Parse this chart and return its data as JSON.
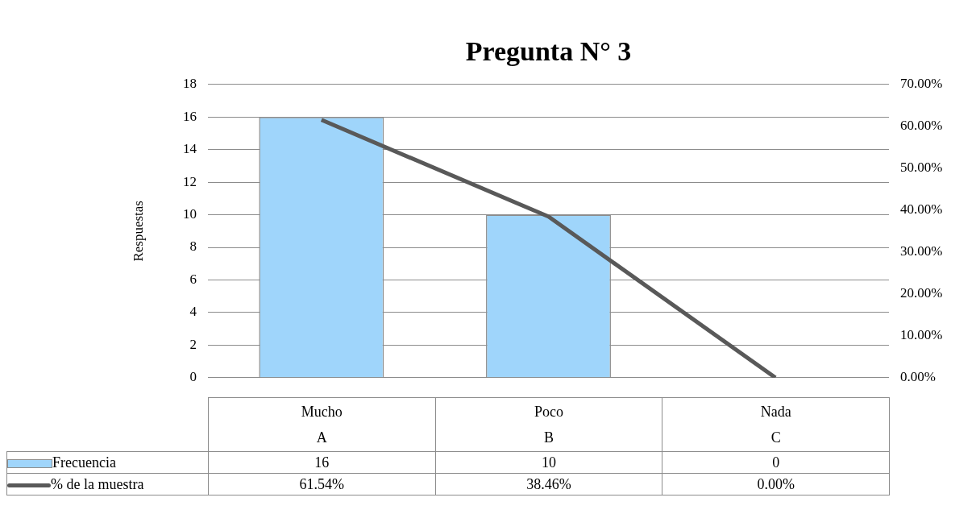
{
  "chart_data": {
    "type": "bar",
    "title": "Pregunta N° 3",
    "ylabel": "Respuestas",
    "categories": [
      "Mucho\nA",
      "Poco\nB",
      "Nada\nC"
    ],
    "series": [
      {
        "name": "Frecuencia",
        "color": "#9fd5fb",
        "values": [
          16,
          10,
          0
        ],
        "value_labels": [
          "16",
          "10",
          "0"
        ]
      },
      {
        "name": "% de la muestra",
        "type": "line",
        "axis": "y2",
        "color": "#595959",
        "values": [
          61.54,
          38.46,
          0
        ],
        "value_labels": [
          "61.54%",
          "38.46%",
          "0.00%"
        ]
      }
    ],
    "ylim": [
      0,
      18
    ],
    "yticks": [
      0,
      2,
      4,
      6,
      8,
      10,
      12,
      14,
      16,
      18
    ],
    "y2lim": [
      0,
      70
    ],
    "y2ticks": [
      {
        "value": 0,
        "label": "0.00%"
      },
      {
        "value": 10,
        "label": "10.00%"
      },
      {
        "value": 20,
        "label": "20.00%"
      },
      {
        "value": 30,
        "label": "30.00%"
      },
      {
        "value": 40,
        "label": "40.00%"
      },
      {
        "value": 50,
        "label": "50.00%"
      },
      {
        "value": 60,
        "label": "60.00%"
      },
      {
        "value": 70,
        "label": "70.00%"
      }
    ],
    "grid": "y",
    "legend": "bottom",
    "marker": "none"
  }
}
